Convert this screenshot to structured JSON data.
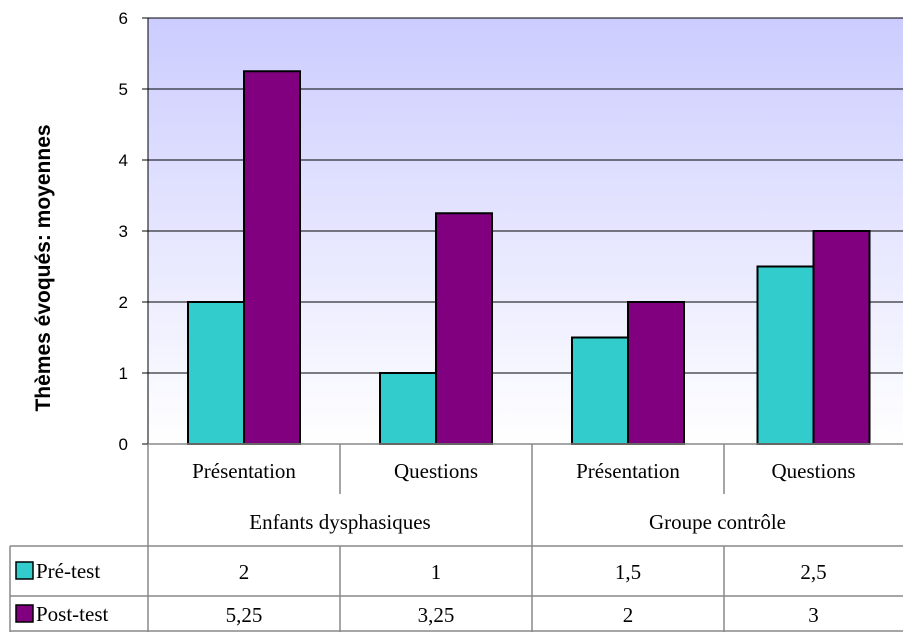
{
  "chart_data": {
    "type": "bar",
    "ylabel": "Thèmes évoqués: moyennes",
    "ylim": [
      0,
      6
    ],
    "yticks": [
      "0",
      "1",
      "2",
      "3",
      "4",
      "5",
      "6"
    ],
    "grid": true,
    "categories": [
      "Présentation",
      "Questions",
      "Présentation",
      "Questions"
    ],
    "groups": [
      {
        "label": "Enfants dysphasiques",
        "span": 2
      },
      {
        "label": "Groupe contrôle",
        "span": 2
      }
    ],
    "series": [
      {
        "name": "Pré-test",
        "color": "#33cccc",
        "values": [
          2,
          1,
          1.5,
          2.5
        ],
        "labels": [
          "2",
          "1",
          "1,5",
          "2,5"
        ]
      },
      {
        "name": "Post-test",
        "color": "#800080",
        "values": [
          5.25,
          3.25,
          2,
          3
        ],
        "labels": [
          "5,25",
          "3,25",
          "2",
          "3"
        ]
      }
    ],
    "plot_background": [
      "#ccccff",
      "#ffffff"
    ]
  }
}
